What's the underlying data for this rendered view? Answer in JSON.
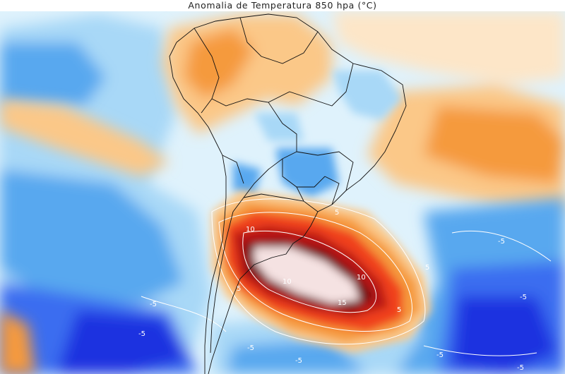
{
  "title": "Anomalia de Temperatura 850 hpa (°C)",
  "contour_labels": [
    {
      "id": "c10-a",
      "text": "10"
    },
    {
      "id": "c10-b",
      "text": "10"
    },
    {
      "id": "c10-c",
      "text": "10"
    },
    {
      "id": "c15",
      "text": "15"
    },
    {
      "id": "c5-a",
      "text": "5"
    },
    {
      "id": "c5-b",
      "text": "5"
    },
    {
      "id": "c5-c",
      "text": "5"
    },
    {
      "id": "c5-d",
      "text": "5"
    },
    {
      "id": "cm5-a",
      "text": "-5"
    },
    {
      "id": "cm5-b",
      "text": "-5"
    },
    {
      "id": "cm5-c",
      "text": "-5"
    },
    {
      "id": "cm5-d",
      "text": "-5"
    },
    {
      "id": "cm5-e",
      "text": "-5"
    },
    {
      "id": "cm5-f",
      "text": "-5"
    },
    {
      "id": "cm5-g",
      "text": "-5"
    },
    {
      "id": "cm5-h",
      "text": "-5"
    }
  ],
  "colors": {
    "background": "#ffffff",
    "anomaly_neg_deep": "#1a33e0",
    "anomaly_neg_strong": "#3a6df0",
    "anomaly_neg_mid": "#58a8ef",
    "anomaly_neg_light": "#a8d8f7",
    "anomaly_neg_faint": "#dff2fc",
    "anomaly_pos_faint": "#fde6c8",
    "anomaly_pos_light": "#fbc888",
    "anomaly_pos_mid": "#f59a3c",
    "anomaly_pos_strong": "#f0401e",
    "anomaly_pos_deep": "#b81414",
    "anomaly_pos_extreme": "#6e0a10",
    "anomaly_pos_peak": "#f5e2e2",
    "borders": "#111111",
    "contour_line": "#ffffff"
  }
}
